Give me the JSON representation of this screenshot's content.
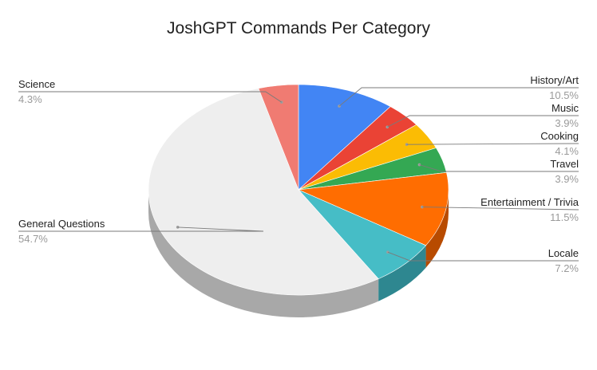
{
  "chart_data": {
    "type": "pie",
    "title": "JoshGPT Commands Per Category",
    "three_d": true,
    "start_angle_deg": 0,
    "direction": "clockwise",
    "slices": [
      {
        "label": "History/Art",
        "percent_label": "10.5%",
        "value": 10.5,
        "color": "#4285f4",
        "side_color": "#2d5fb0",
        "label_side": "right"
      },
      {
        "label": "Music",
        "percent_label": "3.9%",
        "value": 3.9,
        "color": "#ea4335",
        "side_color": "#a82f25",
        "label_side": "right"
      },
      {
        "label": "Cooking",
        "percent_label": "4.1%",
        "value": 4.1,
        "color": "#fbbc04",
        "side_color": "#b58803",
        "label_side": "right"
      },
      {
        "label": "Travel",
        "percent_label": "3.9%",
        "value": 3.9,
        "color": "#34a853",
        "side_color": "#23763a",
        "label_side": "right"
      },
      {
        "label": "Entertainment / Trivia",
        "percent_label": "11.5%",
        "value": 11.5,
        "color": "#ff6d01",
        "side_color": "#b84b00",
        "label_side": "right"
      },
      {
        "label": "Locale",
        "percent_label": "7.2%",
        "value": 7.2,
        "color": "#46bdc6",
        "side_color": "#2e8790",
        "label_side": "right"
      },
      {
        "label": "General Questions",
        "percent_label": "54.7%",
        "value": 54.7,
        "color": "#eeeeee",
        "side_color": "#a8a8a8",
        "label_side": "left"
      },
      {
        "label": "Science",
        "percent_label": "4.3%",
        "value": 4.3,
        "color": "#f07b72",
        "side_color": "#b05a53",
        "label_side": "left"
      }
    ]
  }
}
